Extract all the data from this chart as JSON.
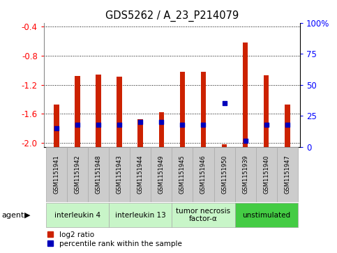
{
  "title": "GDS5262 / A_23_P214079",
  "samples": [
    "GSM1151941",
    "GSM1151942",
    "GSM1151948",
    "GSM1151943",
    "GSM1151944",
    "GSM1151949",
    "GSM1151945",
    "GSM1151946",
    "GSM1151950",
    "GSM1151939",
    "GSM1151940",
    "GSM1151947"
  ],
  "log2_ratio": [
    -1.47,
    -1.08,
    -1.06,
    -1.09,
    -1.67,
    -1.58,
    -1.02,
    -1.02,
    -2.02,
    -0.62,
    -1.07,
    -1.47
  ],
  "percentile": [
    15,
    18,
    18,
    18,
    20,
    20,
    18,
    18,
    35,
    5,
    18,
    18
  ],
  "agents": [
    {
      "label": "interleukin 4",
      "start": 0,
      "end": 3,
      "color": "#c8f5c8"
    },
    {
      "label": "interleukin 13",
      "start": 3,
      "end": 6,
      "color": "#c8f5c8"
    },
    {
      "label": "tumor necrosis\nfactor-α",
      "start": 6,
      "end": 9,
      "color": "#c8f5c8"
    },
    {
      "label": "unstimulated",
      "start": 9,
      "end": 12,
      "color": "#44cc44"
    }
  ],
  "ylim_left": [
    -2.05,
    -0.35
  ],
  "ylim_right": [
    0,
    100
  ],
  "yticks_left": [
    -2.0,
    -1.6,
    -1.2,
    -0.8,
    -0.4
  ],
  "yticks_right": [
    0,
    25,
    50,
    75,
    100
  ],
  "bar_color": "#cc2200",
  "dot_color": "#0000bb",
  "bg_color": "#ffffff",
  "sample_bg": "#cccccc"
}
